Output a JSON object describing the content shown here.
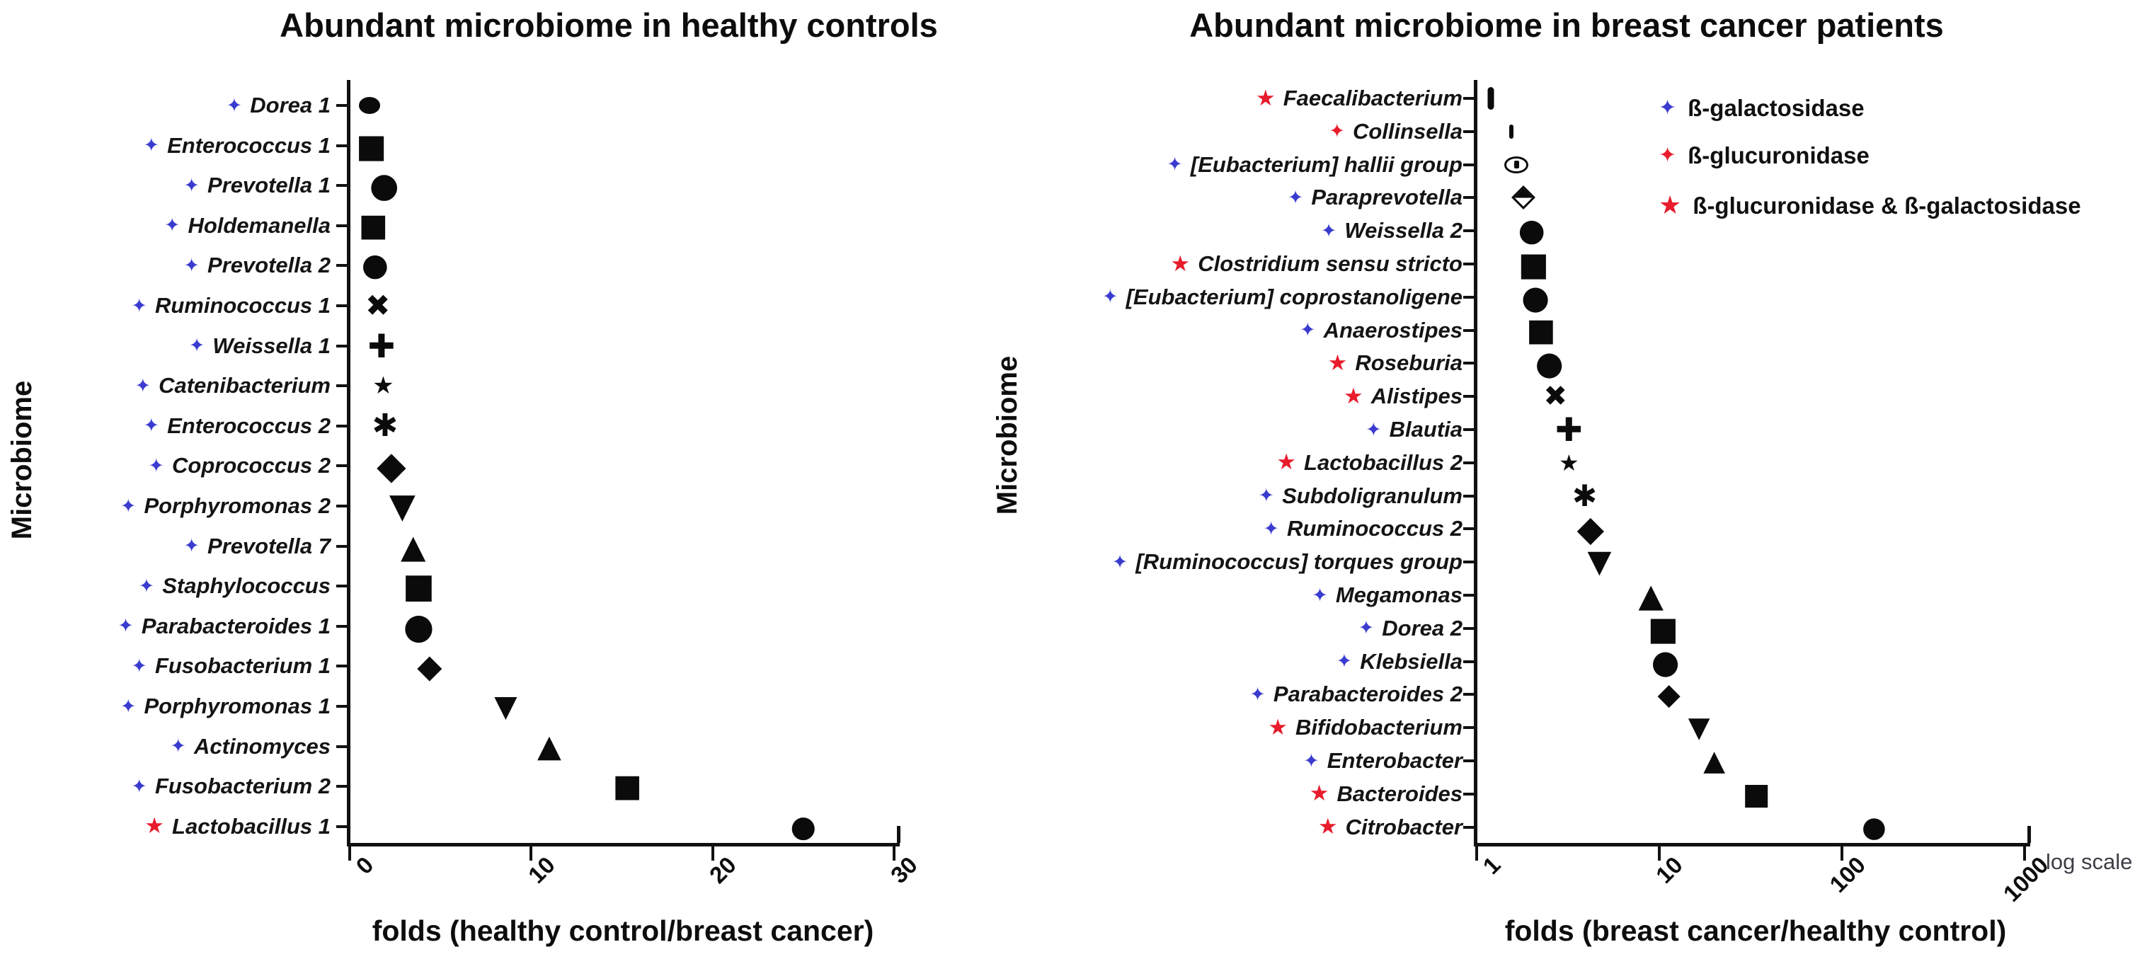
{
  "figure": {
    "background": "#ffffff",
    "marker_color": "#0b0b0b",
    "blue": "#3a3bcf",
    "red": "#e81c2c"
  },
  "enzymes": {
    "gal": {
      "label": "ß-galactosidase",
      "color": "#3a3bcf",
      "icon": "four-point-star"
    },
    "glu": {
      "label": "ß-glucuronidase",
      "color": "#e81c2c",
      "icon": "four-point-star"
    },
    "both": {
      "label": "ß-glucuronidase & ß-galactosidase",
      "color": "#e81c2c",
      "icon": "five-point-star"
    }
  },
  "chart_data": [
    {
      "type": "scatter",
      "title": "Abundant microbiome in healthy controls",
      "xlabel": "folds (healthy control/breast cancer)",
      "ylabel": "Microbiome",
      "xscale": "linear",
      "xlim": [
        0,
        30
      ],
      "xticks": [
        "0",
        "10",
        "20",
        "30"
      ],
      "grid": false,
      "points": [
        {
          "label": "Dorea 1",
          "enzyme": "gal",
          "marker": "ellipse",
          "value": 1.1,
          "size": [
            30,
            24
          ]
        },
        {
          "label": "Enterococcus 1",
          "enzyme": "gal",
          "marker": "square",
          "value": 1.2,
          "size": 46
        },
        {
          "label": "Prevotella 1",
          "enzyme": "gal",
          "marker": "circle",
          "value": 1.9,
          "size": 48
        },
        {
          "label": "Holdemanella",
          "enzyme": "gal",
          "marker": "square",
          "value": 1.3,
          "size": 44
        },
        {
          "label": "Prevotella 2",
          "enzyme": "gal",
          "marker": "circle",
          "value": 1.4,
          "size": 44
        },
        {
          "label": "Ruminococcus 1",
          "enzyme": "gal",
          "marker": "x",
          "value": 1.55,
          "size": 42
        },
        {
          "label": "Weissella 1",
          "enzyme": "gal",
          "marker": "plus",
          "value": 1.75,
          "size": 46
        },
        {
          "label": "Catenibacterium",
          "enzyme": "gal",
          "marker": "star",
          "value": 1.85,
          "size": 34
        },
        {
          "label": "Enterococcus 2",
          "enzyme": "gal",
          "marker": "burst",
          "value": 1.95,
          "size": 44
        },
        {
          "label": "Coprococcus 2",
          "enzyme": "gal",
          "marker": "diamond",
          "value": 2.3,
          "size": 54
        },
        {
          "label": "Porphyromonas 2",
          "enzyme": "gal",
          "marker": "tri-down",
          "value": 2.9,
          "size": 48
        },
        {
          "label": "Prevotella 7",
          "enzyme": "gal",
          "marker": "tri-up",
          "value": 3.5,
          "size": 46
        },
        {
          "label": "Staphylococcus",
          "enzyme": "gal",
          "marker": "square",
          "value": 3.8,
          "size": 48
        },
        {
          "label": "Parabacteroides 1",
          "enzyme": "gal",
          "marker": "circle",
          "value": 3.8,
          "size": 50
        },
        {
          "label": "Fusobacterium 1",
          "enzyme": "gal",
          "marker": "diamond",
          "value": 4.4,
          "size": 46
        },
        {
          "label": "Porphyromonas 1",
          "enzyme": "gal",
          "marker": "tri-down",
          "value": 8.6,
          "size": 42
        },
        {
          "label": "Actinomyces",
          "enzyme": "gal",
          "marker": "tri-up",
          "value": 11,
          "size": 44
        },
        {
          "label": "Fusobacterium 2",
          "enzyme": "gal",
          "marker": "square",
          "value": 15.3,
          "size": 44
        },
        {
          "label": "Lactobacillus 1",
          "enzyme": "both",
          "marker": "circle",
          "value": 25,
          "size": 42
        }
      ]
    },
    {
      "type": "scatter",
      "title": "Abundant microbiome in breast cancer patients",
      "xlabel": "folds (breast cancer/healthy control)",
      "ylabel": "Microbiome",
      "xscale": "log",
      "xlim": [
        1,
        1000
      ],
      "xticks": [
        "1",
        "10",
        "100",
        "1000"
      ],
      "note": "log scale",
      "grid": false,
      "legend": [
        {
          "enzyme": "gal",
          "label": "ß-galactosidase"
        },
        {
          "enzyme": "glu",
          "label": "ß-glucuronidase"
        },
        {
          "enzyme": "both",
          "label": "ß-glucuronidase & ß-galactosidase"
        }
      ],
      "points": [
        {
          "label": "Faecalibacterium",
          "enzyme": "both",
          "marker": "vbar",
          "value": 1.2,
          "size": [
            9,
            32
          ]
        },
        {
          "label": "Collinsella",
          "enzyme": "glu",
          "marker": "vbar",
          "value": 1.55,
          "size": [
            6,
            20
          ]
        },
        {
          "label": "[Eubacterium] hallii group",
          "enzyme": "gal",
          "marker": "eye",
          "value": 1.65,
          "size": [
            34,
            24
          ]
        },
        {
          "label": "Paraprevotella",
          "enzyme": "gal",
          "marker": "half-diamond",
          "value": 1.8,
          "size": [
            24,
            24
          ]
        },
        {
          "label": "Weissella 2",
          "enzyme": "gal",
          "marker": "circle",
          "value": 2.0,
          "size": 44
        },
        {
          "label": "Clostridium sensu stricto",
          "enzyme": "both",
          "marker": "square",
          "value": 2.05,
          "size": 46
        },
        {
          "label": "[Eubacterium] coprostanoligene",
          "enzyme": "gal",
          "marker": "circle",
          "value": 2.1,
          "size": 46
        },
        {
          "label": "Anaerostipes",
          "enzyme": "gal",
          "marker": "square",
          "value": 2.25,
          "size": 44
        },
        {
          "label": "Roseburia",
          "enzyme": "both",
          "marker": "circle",
          "value": 2.5,
          "size": 46
        },
        {
          "label": "Alistipes",
          "enzyme": "both",
          "marker": "x",
          "value": 2.7,
          "size": 40
        },
        {
          "label": "Blautia",
          "enzyme": "gal",
          "marker": "plus",
          "value": 3.2,
          "size": 46
        },
        {
          "label": "Lactobacillus 2",
          "enzyme": "both",
          "marker": "star",
          "value": 3.2,
          "size": 32
        },
        {
          "label": "Subdoligranulum",
          "enzyme": "gal",
          "marker": "burst",
          "value": 3.9,
          "size": 42
        },
        {
          "label": "Ruminococcus 2",
          "enzyme": "gal",
          "marker": "diamond",
          "value": 4.2,
          "size": 50
        },
        {
          "label": "[Ruminococcus] torques group",
          "enzyme": "gal",
          "marker": "tri-down",
          "value": 4.7,
          "size": 44
        },
        {
          "label": "Megamonas",
          "enzyme": "gal",
          "marker": "tri-up",
          "value": 9,
          "size": 46
        },
        {
          "label": "Dorea 2",
          "enzyme": "gal",
          "marker": "square",
          "value": 10.5,
          "size": 46
        },
        {
          "label": "Klebsiella",
          "enzyme": "gal",
          "marker": "circle",
          "value": 10.8,
          "size": 46
        },
        {
          "label": "Parabacteroides 2",
          "enzyme": "gal",
          "marker": "diamond",
          "value": 11.3,
          "size": 42
        },
        {
          "label": "Bifidobacterium",
          "enzyme": "both",
          "marker": "tri-down",
          "value": 16.5,
          "size": 40
        },
        {
          "label": "Enterobacter",
          "enzyme": "gal",
          "marker": "tri-up",
          "value": 20,
          "size": 40
        },
        {
          "label": "Bacteroides",
          "enzyme": "both",
          "marker": "square",
          "value": 34,
          "size": 42
        },
        {
          "label": "Citrobacter",
          "enzyme": "both",
          "marker": "circle",
          "value": 150,
          "size": 40
        }
      ]
    }
  ]
}
